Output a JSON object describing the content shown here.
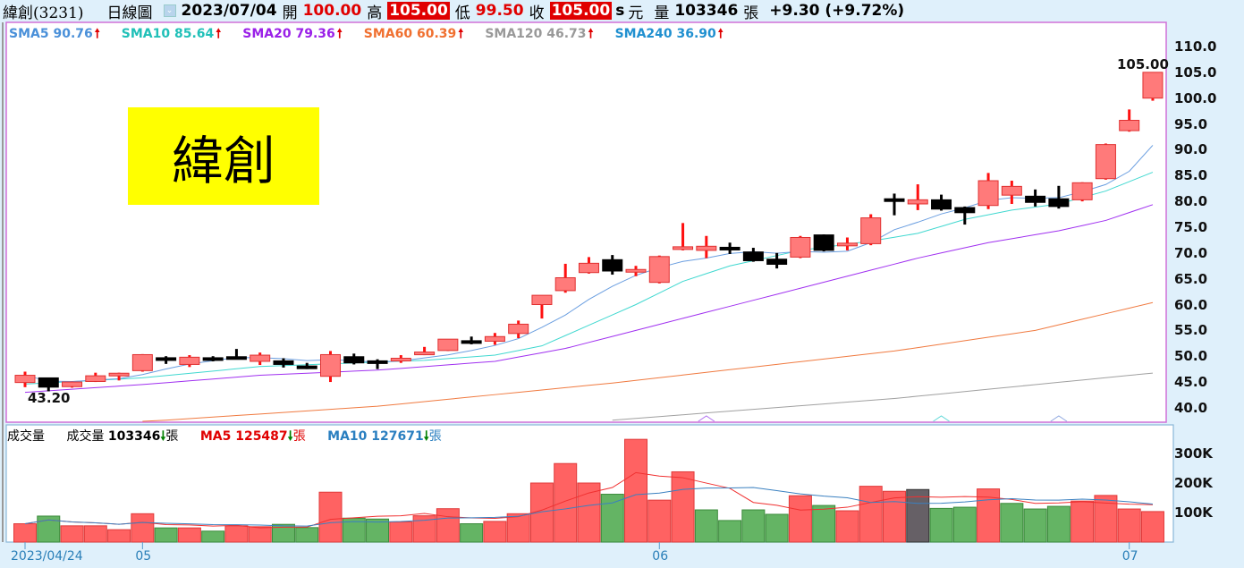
{
  "header": {
    "stock": "緯創(3231)",
    "chart_type": "日線圖",
    "date": "2023/07/04",
    "open_label": "開",
    "open": "100.00",
    "high_label": "高",
    "high": "105.00",
    "low_label": "低",
    "low": "99.50",
    "close_label": "收",
    "close": "105.00",
    "s_mark": "s",
    "unit": "元",
    "volume_label": "量",
    "volume": "103346",
    "volume_unit": "張",
    "change": "+9.30 (+9.72%)"
  },
  "sma_legend": [
    {
      "label": "SMA5 90.76",
      "color": "#4a90d9",
      "arrow": "🠕"
    },
    {
      "label": "SMA10 85.64",
      "color": "#20c0b8",
      "arrow": "🠕"
    },
    {
      "label": "SMA20 79.36",
      "color": "#9a20e8",
      "arrow": "🠕"
    },
    {
      "label": "SMA60 60.39",
      "color": "#f07030",
      "arrow": "🠕"
    },
    {
      "label": "SMA120 46.73",
      "color": "#999999",
      "arrow": "🠕"
    },
    {
      "label": "SMA240 36.90",
      "color": "#2090d0",
      "arrow": "🠕"
    }
  ],
  "volume_legend": {
    "title": "成交量",
    "vol_label": "成交量",
    "vol_value": "103346",
    "vol_unit": "張",
    "ma5_label": "MA5 125487",
    "ma5_unit": "張",
    "ma10_label": "MA10 127671",
    "ma10_unit": "張",
    "arrow_down": "🠗"
  },
  "logo_text": "緯創",
  "annotations": {
    "low_marker": "43.20",
    "high_marker": "105.00"
  },
  "chart_data": [
    {
      "type": "candlestick",
      "title": "緯創(3231) 日線圖",
      "ylim": [
        37.5,
        112
      ],
      "yticks": [
        "110.0",
        "105.0",
        "100.0",
        "95.0",
        "90.0",
        "85.0",
        "80.0",
        "75.0",
        "70.0",
        "65.0",
        "60.0",
        "55.0",
        "50.0",
        "45.0",
        "40.0"
      ],
      "ytick_values": [
        110,
        105,
        100,
        95,
        90,
        85,
        80,
        75,
        70,
        65,
        60,
        55,
        50,
        45,
        40
      ],
      "ohlc": [
        [
          44.9,
          47.0,
          44.0,
          46.3
        ],
        [
          45.8,
          45.8,
          43.2,
          44.0
        ],
        [
          44.1,
          45.1,
          43.9,
          45.0
        ],
        [
          45.1,
          46.8,
          45.0,
          46.2
        ],
        [
          46.5,
          46.8,
          45.3,
          46.7
        ],
        [
          47.2,
          50.4,
          47.0,
          50.3
        ],
        [
          49.7,
          50.0,
          48.5,
          49.4
        ],
        [
          48.4,
          50.2,
          47.9,
          49.8
        ],
        [
          49.7,
          50.0,
          49.0,
          49.4
        ],
        [
          49.9,
          51.4,
          49.8,
          49.8
        ],
        [
          49.0,
          50.7,
          48.3,
          50.2
        ],
        [
          49.1,
          49.6,
          47.8,
          48.4
        ],
        [
          48.1,
          48.7,
          47.5,
          47.9
        ],
        [
          46.1,
          51.0,
          45.0,
          50.3
        ],
        [
          49.9,
          50.5,
          48.4,
          48.7
        ],
        [
          49.1,
          49.4,
          47.5,
          48.9
        ],
        [
          49.1,
          50.2,
          48.7,
          49.6
        ],
        [
          50.4,
          51.8,
          50.2,
          50.8
        ],
        [
          51.1,
          53.3,
          51.0,
          53.3
        ],
        [
          53.0,
          53.8,
          52.3,
          52.9
        ],
        [
          52.9,
          54.5,
          52.2,
          53.8
        ],
        [
          54.4,
          56.9,
          53.5,
          56.2
        ],
        [
          60.0,
          61.8,
          57.3,
          61.8
        ],
        [
          62.7,
          67.9,
          62.3,
          65.2
        ],
        [
          66.2,
          69.2,
          66.0,
          68.0
        ],
        [
          68.7,
          69.6,
          65.8,
          66.5
        ],
        [
          66.6,
          67.5,
          65.5,
          66.8
        ],
        [
          64.3,
          69.5,
          64.1,
          69.3
        ],
        [
          71.0,
          75.8,
          70.5,
          71.2
        ],
        [
          70.5,
          73.3,
          69.0,
          71.3
        ],
        [
          71.1,
          72.0,
          69.8,
          70.9
        ],
        [
          70.2,
          71.0,
          68.3,
          68.5
        ],
        [
          68.8,
          70.0,
          67.0,
          67.8
        ],
        [
          69.2,
          73.3,
          69.0,
          73.0
        ],
        [
          73.5,
          73.6,
          70.3,
          70.5
        ],
        [
          71.7,
          73.0,
          70.5,
          71.9
        ],
        [
          71.8,
          77.5,
          71.5,
          76.8
        ],
        [
          80.5,
          81.5,
          77.3,
          80.3
        ],
        [
          79.5,
          83.3,
          78.3,
          80.3
        ],
        [
          80.3,
          81.3,
          78.2,
          78.5
        ],
        [
          78.8,
          79.0,
          75.5,
          77.8
        ],
        [
          79.2,
          85.5,
          78.5,
          84.0
        ],
        [
          81.2,
          84.0,
          79.5,
          82.9
        ],
        [
          81.0,
          82.3,
          79.0,
          79.8
        ],
        [
          80.5,
          83.0,
          78.6,
          79.0
        ],
        [
          80.3,
          83.7,
          80.0,
          83.6
        ],
        [
          84.4,
          91.2,
          84.2,
          91.0
        ],
        [
          93.7,
          97.8,
          93.5,
          95.7
        ],
        [
          100.0,
          105.0,
          99.5,
          105.0
        ]
      ],
      "sma_anchor_series": [
        {
          "name": "SMA10",
          "color": "#40d8d0",
          "points": [
            [
              0,
              44.6
            ],
            [
              5,
              45.8
            ],
            [
              10,
              48.0
            ],
            [
              17,
              49.2
            ],
            [
              20,
              50.2
            ],
            [
              22,
              52.0
            ],
            [
              24,
              56.0
            ],
            [
              26,
              60.0
            ],
            [
              28,
              64.5
            ],
            [
              30,
              67.5
            ],
            [
              33,
              70.5
            ],
            [
              36,
              72.3
            ],
            [
              38,
              73.8
            ],
            [
              40,
              76.5
            ],
            [
              42,
              78.3
            ],
            [
              44,
              79.5
            ],
            [
              46,
              82.0
            ],
            [
              48,
              85.64
            ]
          ]
        },
        {
          "name": "SMA20",
          "color": "#a030f0",
          "points": [
            [
              0,
              43.0
            ],
            [
              5,
              44.5
            ],
            [
              10,
              46.3
            ],
            [
              15,
              47.3
            ],
            [
              20,
              49.0
            ],
            [
              23,
              51.5
            ],
            [
              26,
              55.0
            ],
            [
              29,
              58.5
            ],
            [
              32,
              62.0
            ],
            [
              35,
              65.5
            ],
            [
              38,
              69.0
            ],
            [
              41,
              72.0
            ],
            [
              44,
              74.3
            ],
            [
              46,
              76.3
            ],
            [
              48,
              79.36
            ]
          ]
        },
        {
          "name": "SMA60",
          "color": "#f07a40",
          "points": [
            [
              5,
              37.3
            ],
            [
              15,
              40.3
            ],
            [
              25,
              44.8
            ],
            [
              37,
              51.0
            ],
            [
              43,
              55.0
            ],
            [
              48,
              60.39
            ]
          ]
        },
        {
          "name": "SMA120",
          "color": "#a0a0a0",
          "points": [
            [
              25,
              37.6
            ],
            [
              37,
              41.8
            ],
            [
              48,
              46.73
            ]
          ]
        }
      ],
      "sma5_color": "#6a9ee0",
      "markers": [
        {
          "index": 29,
          "color": "#b070f0"
        },
        {
          "index": 39,
          "color": "#60d8d8"
        },
        {
          "index": 44,
          "color": "#90a8e0"
        }
      ]
    },
    {
      "type": "bar",
      "title": "成交量",
      "ylim": [
        0,
        380000
      ],
      "yticks": [
        "300K",
        "200K",
        "100K"
      ],
      "ytick_values": [
        300000,
        200000,
        100000
      ],
      "values": [
        62000,
        88000,
        55000,
        55000,
        42000,
        96000,
        48000,
        48000,
        37000,
        55000,
        52000,
        60000,
        49000,
        169000,
        81000,
        78000,
        68000,
        89000,
        113000,
        62000,
        70000,
        96000,
        200000,
        266000,
        200000,
        162000,
        348000,
        142000,
        238000,
        109000,
        73000,
        109000,
        94000,
        157000,
        124000,
        106000,
        189000,
        172000,
        178000,
        114000,
        118000,
        180000,
        131000,
        112000,
        121000,
        139000,
        158000,
        112000,
        103346
      ],
      "colors": [
        "r",
        "g",
        "r",
        "r",
        "r",
        "r",
        "g",
        "r",
        "g",
        "r",
        "r",
        "g",
        "g",
        "r",
        "g",
        "g",
        "r",
        "r",
        "r",
        "g",
        "r",
        "r",
        "r",
        "r",
        "r",
        "g",
        "r",
        "r",
        "r",
        "g",
        "g",
        "g",
        "g",
        "r",
        "g",
        "r",
        "r",
        "r",
        "k",
        "g",
        "g",
        "r",
        "g",
        "g",
        "g",
        "r",
        "r",
        "r",
        "r"
      ],
      "ma5_color": "#f03030",
      "ma10_color": "#3a80c0"
    }
  ],
  "x_axis": [
    {
      "label": "2023/04/24",
      "index": 0
    },
    {
      "label": "05",
      "index": 5
    },
    {
      "label": "06",
      "index": 27
    },
    {
      "label": "07",
      "index": 47
    }
  ]
}
